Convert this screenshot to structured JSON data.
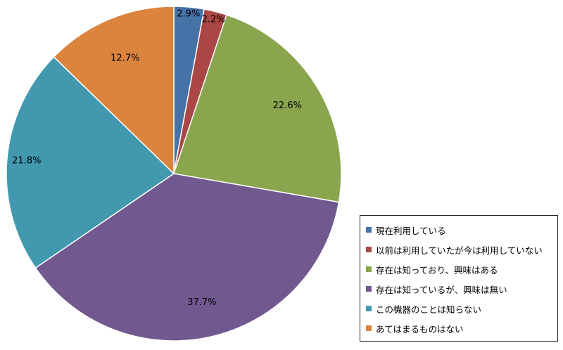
{
  "chart_data": {
    "type": "pie",
    "title": "",
    "categories": [
      "現在利用している",
      "以前は利用していたが今は利用していない",
      "存在は知っており、興味はある",
      "存在は知っているが、興味は無い",
      "この機器のことは知らない",
      "あてはまるものはない"
    ],
    "values": [
      2.9,
      2.2,
      22.6,
      37.7,
      21.8,
      12.7
    ],
    "data_labels": [
      "2.9%",
      "2.2%",
      "22.6%",
      "37.7%",
      "21.8%",
      "12.7%"
    ],
    "colors": [
      "#4572A7",
      "#AA4643",
      "#89A54E",
      "#71588F",
      "#4198AF",
      "#DB843D"
    ],
    "legend_position": "bottom-right",
    "start_angle": "12 o'clock",
    "direction": "clockwise"
  }
}
